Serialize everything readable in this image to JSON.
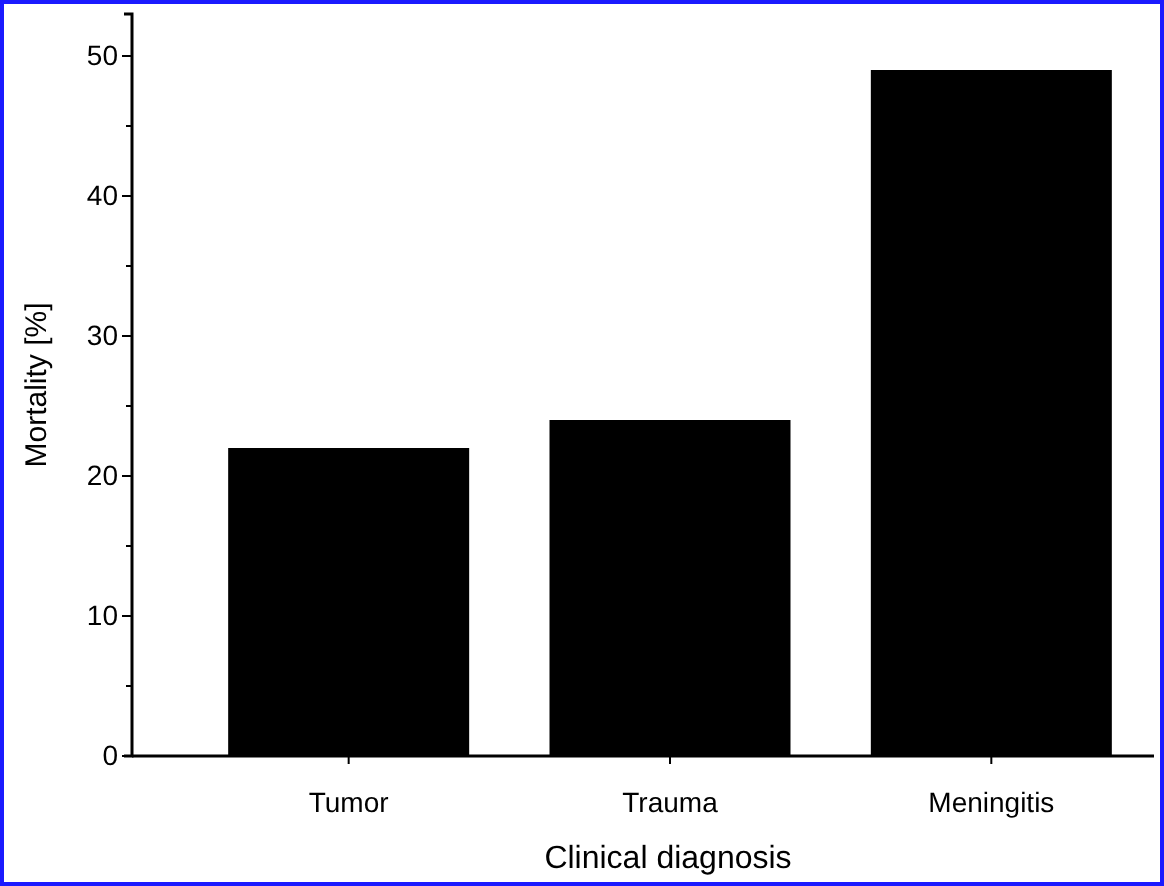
{
  "chart_data": {
    "type": "bar",
    "xlabel": "Clinical diagnosis",
    "ylabel": "Mortality [%]",
    "categories": [
      "Tumor",
      "Trauma",
      "Meningitis"
    ],
    "values": [
      22,
      24,
      49
    ],
    "color": "#000000",
    "ylim": [
      0,
      53
    ],
    "yticks": [
      0,
      {
        "value": 5,
        "label": null
      },
      10,
      {
        "value": 15,
        "label": null
      },
      20,
      {
        "value": 25,
        "label": null
      },
      30,
      {
        "value": 35,
        "label": null
      },
      40,
      {
        "value": 45,
        "label": null
      },
      50
    ],
    "grid": false
  }
}
